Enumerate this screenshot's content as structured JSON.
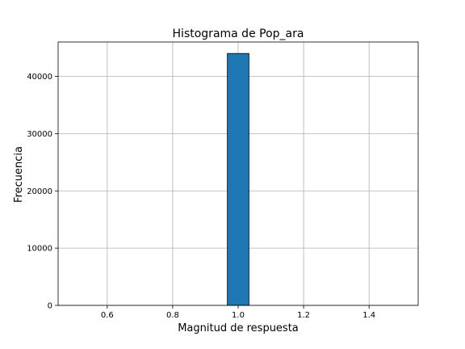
{
  "chart_data": {
    "type": "bar",
    "title": "Histograma de Pop_ara",
    "xlabel": "Magnitud de respuesta",
    "ylabel": "Frecuencia",
    "xlim": [
      0.45,
      1.55
    ],
    "ylim": [
      0,
      46000
    ],
    "xticks": [
      0.6,
      0.8,
      1.0,
      1.2,
      1.4
    ],
    "xtick_labels": [
      "0.6",
      "0.8",
      "1.0",
      "1.2",
      "1.4"
    ],
    "yticks": [
      0,
      10000,
      20000,
      30000,
      40000
    ],
    "ytick_labels": [
      "0",
      "10000",
      "20000",
      "30000",
      "40000"
    ],
    "grid": true,
    "bins": [
      {
        "x_start": 0.967,
        "x_end": 1.033,
        "count": 44000
      }
    ],
    "colors": {
      "bar_fill": "#1f77b4",
      "bar_edge": "#000000",
      "grid": "#b0b0b0"
    }
  }
}
